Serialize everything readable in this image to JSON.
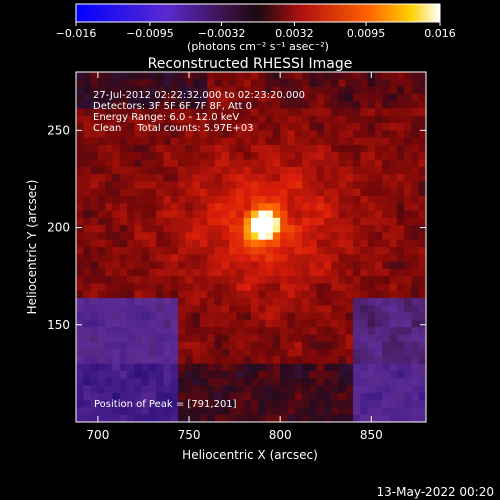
{
  "chart_data": {
    "type": "heatmap",
    "title": "Reconstructed RHESSI Image",
    "xlabel": "Heliocentric X (arcsec)",
    "ylabel": "Heliocentric Y (arcsec)",
    "xlim": [
      688,
      880
    ],
    "ylim": [
      100,
      280
    ],
    "x_ticks": [
      700,
      750,
      800,
      850
    ],
    "y_ticks": [
      150,
      200,
      250
    ],
    "colorbar": {
      "range": [
        -0.016,
        0.016
      ],
      "tick_values": [
        -0.016,
        -0.0095,
        -0.0032,
        0.0032,
        0.0095,
        0.016
      ],
      "tick_labels": [
        "−0.016",
        "−0.0095",
        "−0.0032",
        "0.0032",
        "0.0095",
        "0.016"
      ],
      "units_label": "(photons cm⁻² s⁻¹ asec⁻²)"
    },
    "annotations": [
      "27-Jul-2012 02:22:32.000 to 02:23:20.000",
      "Detectors: 3F 5F 6F 7F 8F, Att 0",
      "Energy Range: 6.0 - 12.0 keV",
      "Clean     Total counts: 5.97E+03"
    ],
    "peak_label": "Position of Peak = [791,201]",
    "peak": {
      "x": 791,
      "y": 201,
      "value": 0.016
    }
  },
  "footer": {
    "date": "13-May-2022 00:20"
  }
}
